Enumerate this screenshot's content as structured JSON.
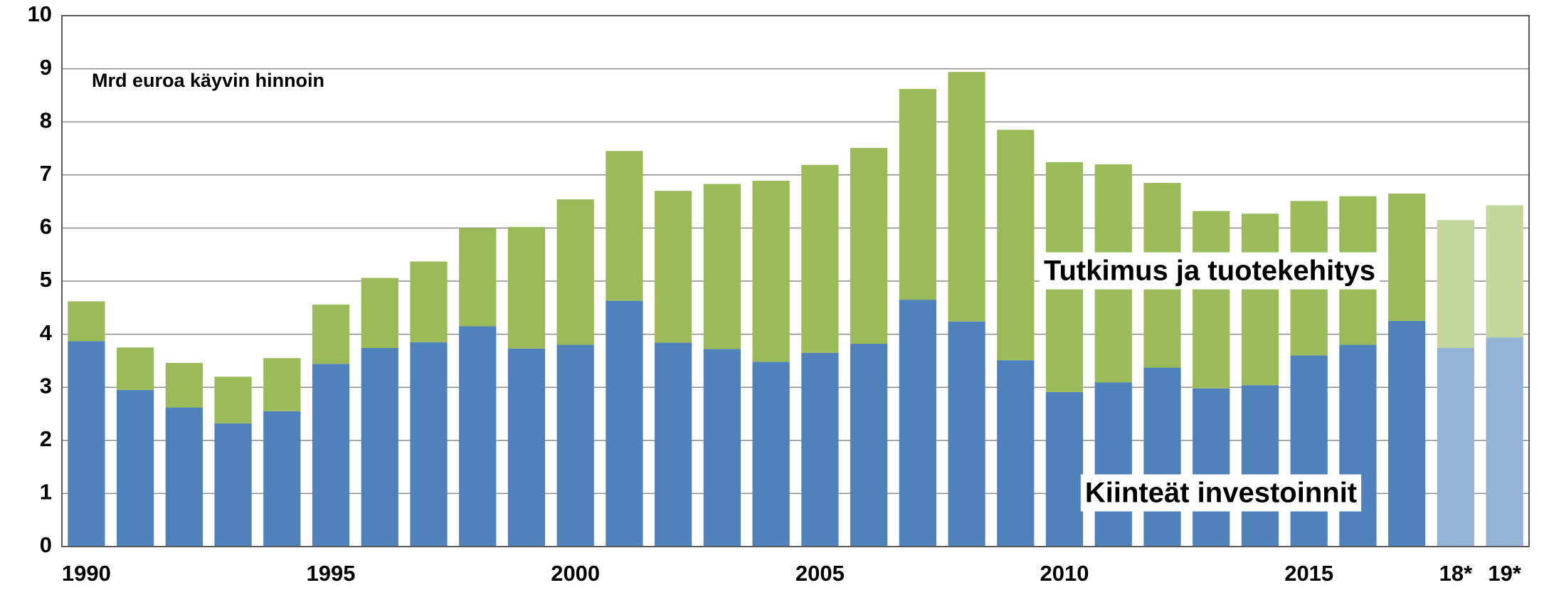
{
  "chart_data": {
    "type": "stacked_bar",
    "subtitle": "Mrd euroa käyvin hinnoin",
    "categories": [
      "1990",
      null,
      null,
      null,
      null,
      "1995",
      null,
      null,
      null,
      null,
      "2000",
      null,
      null,
      null,
      null,
      "2005",
      null,
      null,
      null,
      null,
      "2010",
      null,
      null,
      null,
      null,
      "2015",
      null,
      null,
      "18*",
      "19*"
    ],
    "series": [
      {
        "name": "Kiinteät investoinnit",
        "color": "#4f81bd",
        "colors": [
          "#4f81bd",
          "#4f81bd",
          "#4f81bd",
          "#4f81bd",
          "#4f81bd",
          "#4f81bd",
          "#4f81bd",
          "#4f81bd",
          "#4f81bd",
          "#4f81bd",
          "#4f81bd",
          "#4f81bd",
          "#4f81bd",
          "#4f81bd",
          "#4f81bd",
          "#4f81bd",
          "#4f81bd",
          "#4f81bd",
          "#4f81bd",
          "#4f81bd",
          "#4f81bd",
          "#4f81bd",
          "#4f81bd",
          "#4f81bd",
          "#4f81bd",
          "#4f81bd",
          "#4f81bd",
          "#4f81bd",
          "#95b3d7",
          "#95b3d7"
        ],
        "values": [
          3.87,
          2.95,
          2.62,
          2.32,
          2.55,
          3.44,
          3.74,
          3.85,
          4.15,
          3.73,
          3.8,
          4.63,
          3.84,
          3.72,
          3.48,
          3.65,
          3.82,
          4.65,
          4.24,
          3.51,
          2.91,
          3.09,
          3.37,
          2.98,
          3.04,
          3.6,
          3.8,
          4.25,
          3.74,
          3.94
        ]
      },
      {
        "name": "Tutkimus ja tuotekehitys",
        "color": "#9bbb59",
        "colors": [
          "#9bbb59",
          "#9bbb59",
          "#9bbb59",
          "#9bbb59",
          "#9bbb59",
          "#9bbb59",
          "#9bbb59",
          "#9bbb59",
          "#9bbb59",
          "#9bbb59",
          "#9bbb59",
          "#9bbb59",
          "#9bbb59",
          "#9bbb59",
          "#9bbb59",
          "#9bbb59",
          "#9bbb59",
          "#9bbb59",
          "#9bbb59",
          "#9bbb59",
          "#9bbb59",
          "#9bbb59",
          "#9bbb59",
          "#9bbb59",
          "#9bbb59",
          "#9bbb59",
          "#9bbb59",
          "#9bbb59",
          "#c3d69b",
          "#c3d69b"
        ],
        "values": [
          0.75,
          0.8,
          0.84,
          0.88,
          1.0,
          1.12,
          1.32,
          1.52,
          1.85,
          2.29,
          2.74,
          2.82,
          2.86,
          3.11,
          3.41,
          3.54,
          3.69,
          3.97,
          4.7,
          4.34,
          4.33,
          4.11,
          3.48,
          3.34,
          3.23,
          2.91,
          2.8,
          2.4,
          2.41,
          2.49
        ]
      }
    ],
    "ylim": [
      0,
      10
    ],
    "yticks": [
      0,
      1,
      2,
      3,
      4,
      5,
      6,
      7,
      8,
      9,
      10
    ],
    "grid": true
  }
}
